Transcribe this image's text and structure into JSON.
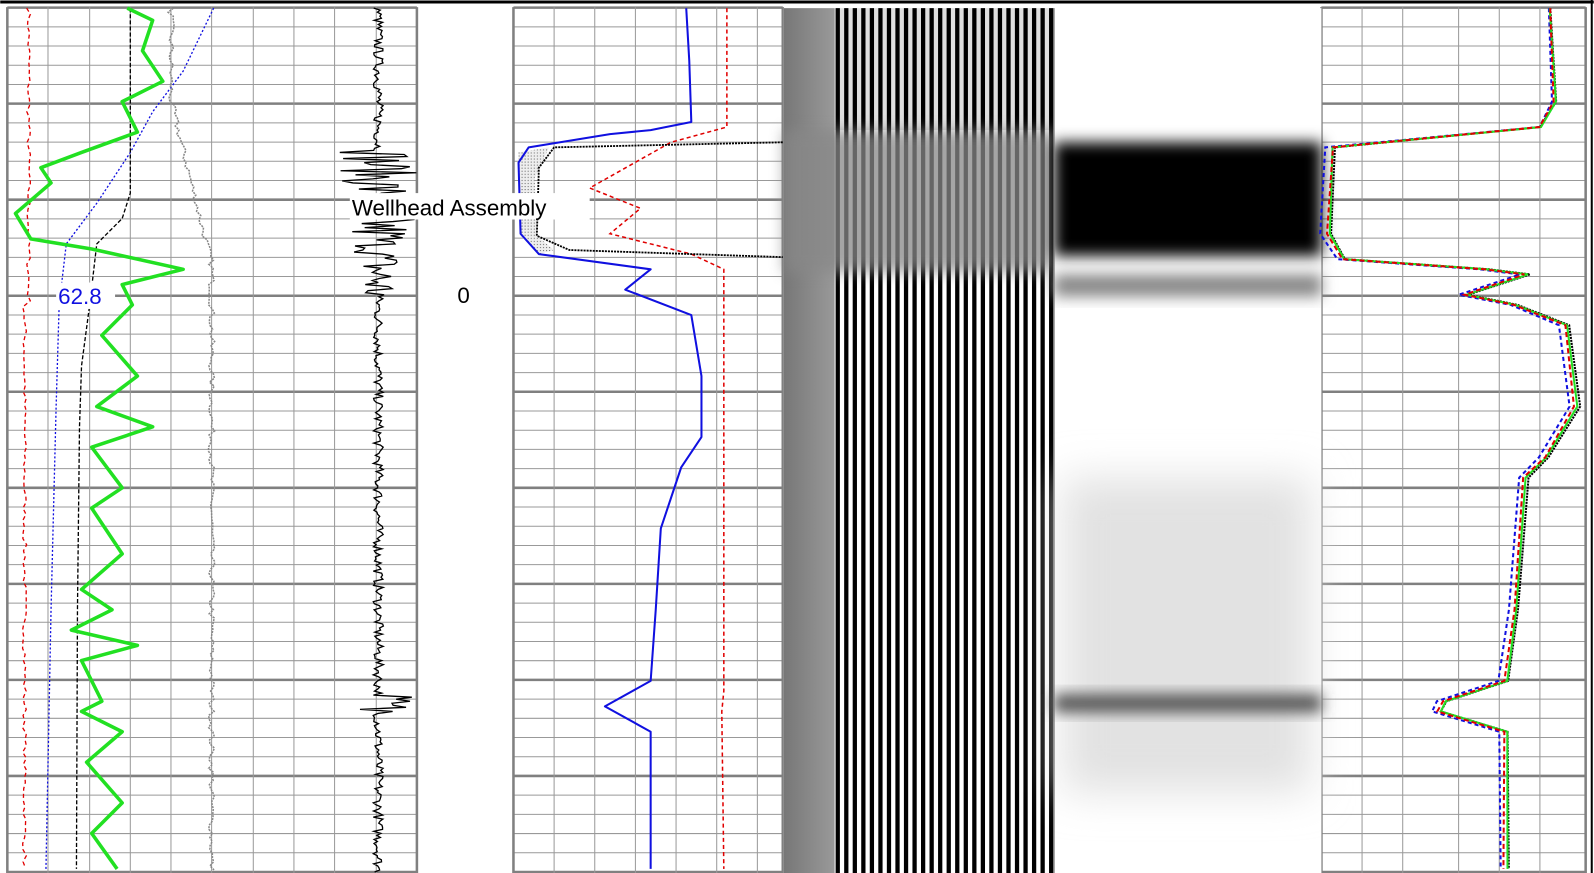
{
  "annotations": {
    "marker_label": "Wellhead Assembly",
    "curve_value": "62.8",
    "depth_label": "0"
  }
}
